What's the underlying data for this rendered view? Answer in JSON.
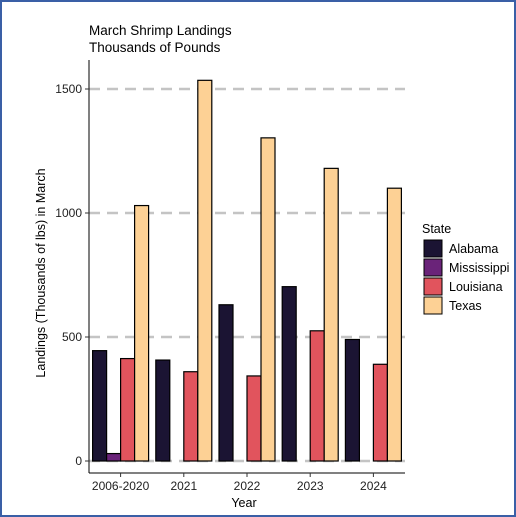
{
  "chart_data": {
    "type": "bar",
    "title": "March Shrimp Landings",
    "subtitle": "Thousands of Pounds",
    "xlabel": "Year",
    "ylabel": "Landings (Thousands of lbs) in March",
    "categories": [
      "2006-2020",
      "2021",
      "2022",
      "2023",
      "2024"
    ],
    "series": [
      {
        "name": "Alabama",
        "color": "#1b1433",
        "values": [
          445,
          407,
          630,
          703,
          490
        ]
      },
      {
        "name": "Mississippi",
        "color": "#6a2379",
        "values": [
          30,
          null,
          null,
          null,
          null
        ]
      },
      {
        "name": "Louisiana",
        "color": "#e1545d",
        "values": [
          413,
          360,
          343,
          525,
          390
        ]
      },
      {
        "name": "Texas",
        "color": "#fdd195",
        "values": [
          1030,
          1535,
          1303,
          1180,
          1100
        ]
      }
    ],
    "ylim": [
      0,
      1620
    ],
    "yticks": [
      0,
      500,
      1000,
      1500
    ],
    "grid": "horizontal-dashed",
    "legend": {
      "title": "State",
      "position": "right"
    }
  }
}
